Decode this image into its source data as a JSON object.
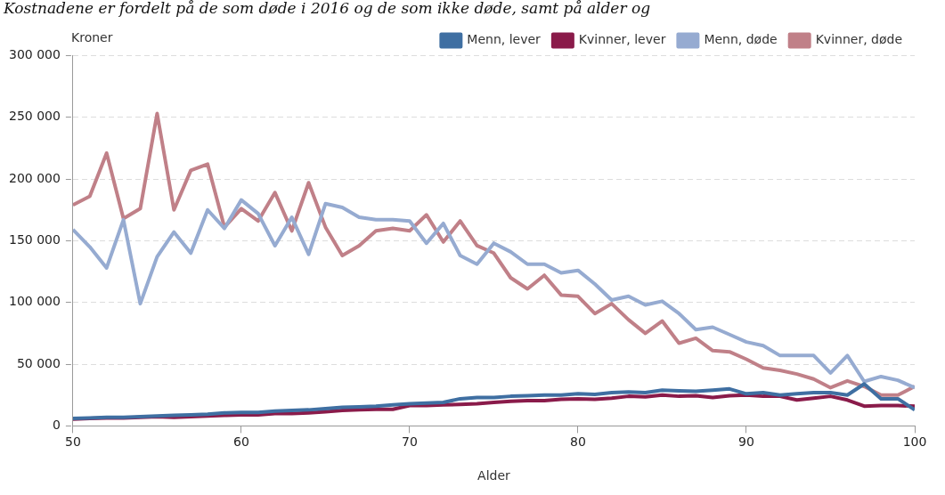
{
  "chart_data": {
    "type": "line",
    "title": "Kostnadene er fordelt på de som døde i 2016 og de som ikke døde, samt på alder og",
    "xlabel": "Alder",
    "ylabel": "Kroner",
    "x": [
      50,
      51,
      52,
      53,
      54,
      55,
      56,
      57,
      58,
      59,
      60,
      61,
      62,
      63,
      64,
      65,
      66,
      67,
      68,
      69,
      70,
      71,
      72,
      73,
      74,
      75,
      76,
      77,
      78,
      79,
      80,
      81,
      82,
      83,
      84,
      85,
      86,
      87,
      88,
      89,
      90,
      91,
      92,
      93,
      94,
      95,
      96,
      97,
      98,
      99,
      100
    ],
    "xlim": [
      50,
      100
    ],
    "xticks": [
      50,
      60,
      70,
      80,
      90,
      100
    ],
    "ylim": [
      0,
      300000
    ],
    "yticks": [
      {
        "value": 0,
        "label": "0"
      },
      {
        "value": 50000,
        "label": "50 000"
      },
      {
        "value": 100000,
        "label": "100 000"
      },
      {
        "value": 150000,
        "label": "150 000"
      },
      {
        "value": 200000,
        "label": "200 000"
      },
      {
        "value": 250000,
        "label": "250 000"
      },
      {
        "value": 300000,
        "label": "300 000"
      }
    ],
    "grid": "y",
    "legend": "top right",
    "marker": "none",
    "line_style": "solid",
    "series": [
      {
        "name": "Menn, lever",
        "color": "#3f6fa2",
        "values": [
          6000,
          6500,
          7000,
          7000,
          7500,
          8000,
          8500,
          9000,
          9500,
          10500,
          11000,
          11000,
          12000,
          12500,
          13000,
          14000,
          15000,
          15500,
          16000,
          17000,
          18000,
          18500,
          19000,
          22000,
          23000,
          23000,
          24000,
          24500,
          25000,
          25000,
          26000,
          25500,
          27000,
          27500,
          27000,
          29000,
          28500,
          28000,
          29000,
          30000,
          26000,
          27000,
          25000,
          26000,
          27000,
          27000,
          25000,
          34000,
          22000,
          22000,
          13000
        ]
      },
      {
        "name": "Kvinner, lever",
        "color": "#8a1b4a",
        "values": [
          5500,
          6000,
          6500,
          6500,
          7000,
          7500,
          7000,
          7500,
          8000,
          8500,
          9000,
          9000,
          10000,
          10000,
          10500,
          11500,
          12500,
          13000,
          13500,
          13500,
          16500,
          16500,
          17000,
          17500,
          18000,
          19000,
          20000,
          20500,
          20500,
          21500,
          22000,
          21500,
          22500,
          24000,
          23500,
          25000,
          24000,
          24500,
          23000,
          24500,
          25000,
          24000,
          24000,
          21000,
          22500,
          24000,
          21000,
          16000,
          16500,
          16500,
          16000
        ]
      },
      {
        "name": "Menn, døde",
        "color": "#96abd1",
        "values": [
          159000,
          145000,
          128000,
          167000,
          99000,
          137000,
          157000,
          140000,
          175000,
          160000,
          183000,
          172000,
          146000,
          169000,
          139000,
          180000,
          177000,
          169000,
          167000,
          167000,
          166000,
          148000,
          164000,
          138000,
          131000,
          148000,
          141000,
          131000,
          131000,
          124000,
          126000,
          115000,
          102000,
          105000,
          98000,
          101000,
          91000,
          78000,
          80000,
          74000,
          68000,
          65000,
          57000,
          57000,
          57000,
          43000,
          57000,
          36000,
          40000,
          37000,
          31000
        ]
      },
      {
        "name": "Kvinner, døde",
        "color": "#c08088",
        "values": [
          179000,
          186000,
          221000,
          168000,
          176000,
          253000,
          175000,
          207000,
          212000,
          161000,
          176000,
          166000,
          189000,
          158000,
          197000,
          161000,
          138000,
          146000,
          158000,
          160000,
          158000,
          171000,
          149000,
          166000,
          146000,
          140000,
          120000,
          111000,
          122000,
          106000,
          105000,
          91000,
          99000,
          86000,
          75000,
          85000,
          67000,
          71000,
          61000,
          60000,
          54000,
          47000,
          45000,
          42000,
          38000,
          31000,
          36500,
          32000,
          25000,
          25000,
          32000
        ]
      }
    ]
  }
}
